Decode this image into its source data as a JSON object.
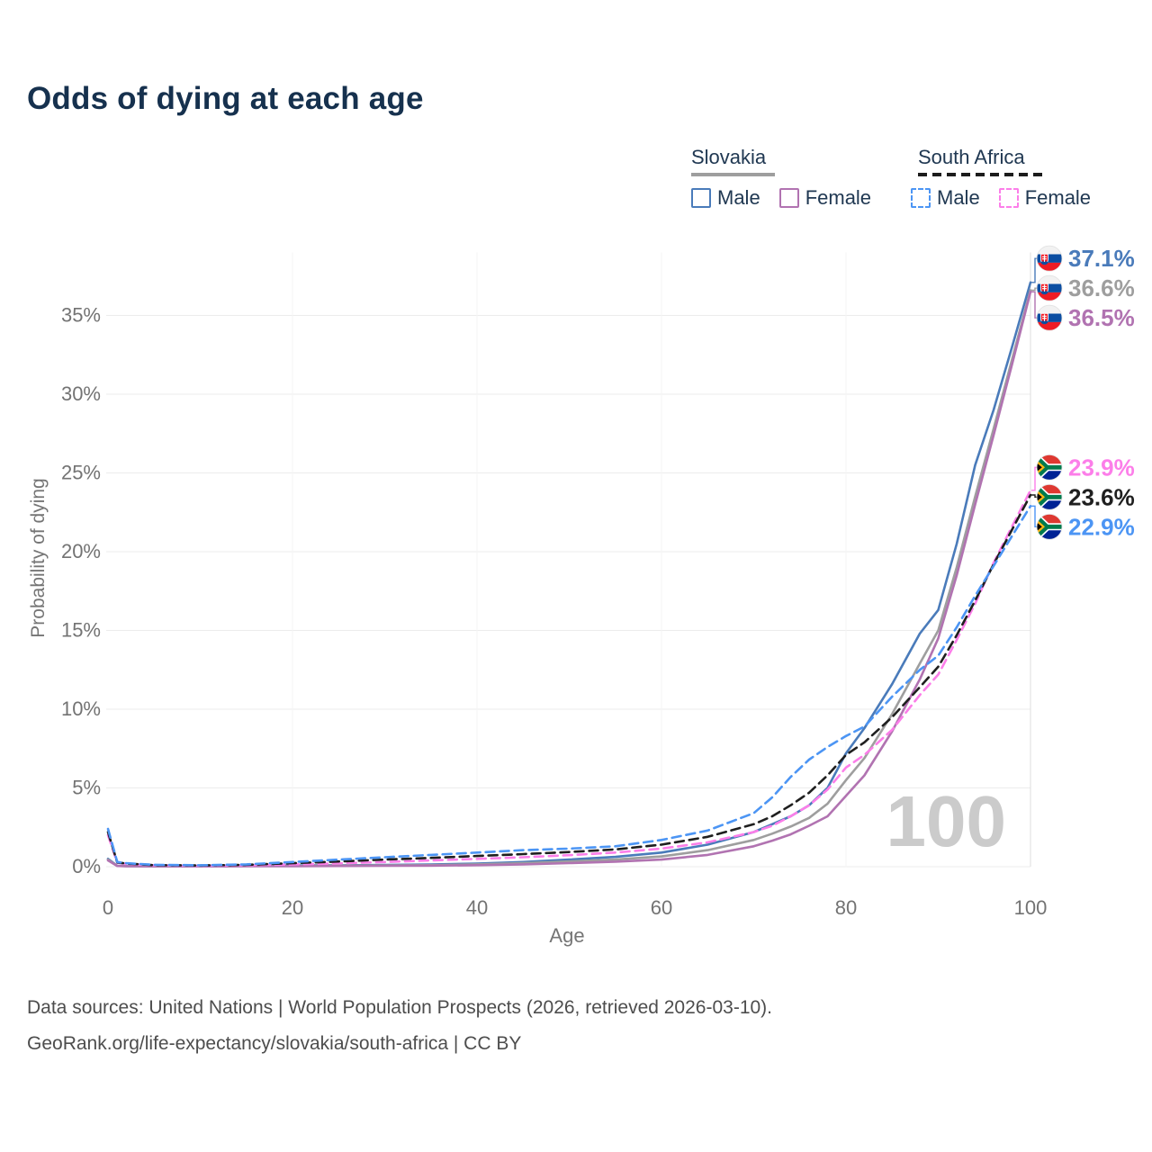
{
  "title": "Odds of dying at each age",
  "legend": {
    "groups": [
      {
        "label": "Slovakia",
        "line_style": "solid",
        "underline_color": "#9e9e9e",
        "items": [
          {
            "label": "Male",
            "color": "#4a7bba"
          },
          {
            "label": "Female",
            "color": "#b173b1"
          }
        ]
      },
      {
        "label": "South Africa",
        "line_style": "dashed",
        "underline_color": "#1c1c1c",
        "items": [
          {
            "label": "Male",
            "color": "#4c95f4"
          },
          {
            "label": "Female",
            "color": "#fc7ee9"
          }
        ]
      }
    ]
  },
  "chart_data": {
    "type": "line",
    "xlabel": "Age",
    "ylabel": "Probability of dying",
    "x_ticks": [
      0,
      20,
      40,
      60,
      80,
      100
    ],
    "y_ticks": [
      "0%",
      "5%",
      "10%",
      "15%",
      "20%",
      "25%",
      "30%",
      "35%"
    ],
    "xlim": [
      0,
      100
    ],
    "ylim": [
      0,
      39
    ],
    "grid": "horizontal-major",
    "legend_position": "top-right",
    "watermark": "100",
    "series": [
      {
        "id": "slovakia-male",
        "country": "Slovakia",
        "sex": "Male",
        "color": "#4a7bba",
        "dashed": false,
        "flag": "sk",
        "end_label": "37.1%",
        "points": [
          [
            0,
            0.5
          ],
          [
            1,
            0.06
          ],
          [
            2,
            0.04
          ],
          [
            5,
            0.03
          ],
          [
            10,
            0.03
          ],
          [
            15,
            0.05
          ],
          [
            20,
            0.08
          ],
          [
            25,
            0.09
          ],
          [
            30,
            0.11
          ],
          [
            35,
            0.14
          ],
          [
            40,
            0.2
          ],
          [
            45,
            0.3
          ],
          [
            50,
            0.45
          ],
          [
            55,
            0.62
          ],
          [
            60,
            0.9
          ],
          [
            65,
            1.4
          ],
          [
            70,
            2.2
          ],
          [
            72,
            2.7
          ],
          [
            74,
            3.2
          ],
          [
            76,
            3.9
          ],
          [
            78,
            5.0
          ],
          [
            80,
            7.2
          ],
          [
            82,
            8.8
          ],
          [
            85,
            11.6
          ],
          [
            88,
            14.8
          ],
          [
            90,
            16.3
          ],
          [
            92,
            20.5
          ],
          [
            94,
            25.5
          ],
          [
            96,
            29.0
          ],
          [
            98,
            33.0
          ],
          [
            100,
            37.1
          ]
        ]
      },
      {
        "id": "slovakia-both-sexes",
        "country": "Slovakia",
        "sex": "Both sexes",
        "color": "#9e9e9e",
        "dashed": false,
        "flag": "sk",
        "end_label": "36.6%",
        "points": [
          [
            0,
            0.45
          ],
          [
            1,
            0.05
          ],
          [
            2,
            0.035
          ],
          [
            5,
            0.02
          ],
          [
            10,
            0.02
          ],
          [
            15,
            0.04
          ],
          [
            20,
            0.06
          ],
          [
            25,
            0.07
          ],
          [
            30,
            0.08
          ],
          [
            35,
            0.1
          ],
          [
            40,
            0.15
          ],
          [
            45,
            0.22
          ],
          [
            50,
            0.33
          ],
          [
            55,
            0.45
          ],
          [
            60,
            0.65
          ],
          [
            65,
            1.05
          ],
          [
            70,
            1.7
          ],
          [
            72,
            2.1
          ],
          [
            74,
            2.55
          ],
          [
            76,
            3.1
          ],
          [
            78,
            4.0
          ],
          [
            80,
            5.5
          ],
          [
            82,
            6.9
          ],
          [
            85,
            9.7
          ],
          [
            88,
            12.9
          ],
          [
            90,
            15.0
          ],
          [
            92,
            19.0
          ],
          [
            94,
            23.5
          ],
          [
            96,
            27.8
          ],
          [
            98,
            32.2
          ],
          [
            100,
            36.6
          ]
        ]
      },
      {
        "id": "slovakia-female",
        "country": "Slovakia",
        "sex": "Female",
        "color": "#b173b1",
        "dashed": false,
        "flag": "sk",
        "end_label": "36.5%",
        "points": [
          [
            0,
            0.4
          ],
          [
            1,
            0.045
          ],
          [
            2,
            0.03
          ],
          [
            5,
            0.02
          ],
          [
            10,
            0.02
          ],
          [
            15,
            0.03
          ],
          [
            20,
            0.035
          ],
          [
            25,
            0.045
          ],
          [
            30,
            0.055
          ],
          [
            35,
            0.07
          ],
          [
            40,
            0.1
          ],
          [
            45,
            0.15
          ],
          [
            50,
            0.23
          ],
          [
            55,
            0.32
          ],
          [
            60,
            0.45
          ],
          [
            65,
            0.75
          ],
          [
            70,
            1.3
          ],
          [
            72,
            1.65
          ],
          [
            74,
            2.05
          ],
          [
            76,
            2.6
          ],
          [
            78,
            3.2
          ],
          [
            80,
            4.5
          ],
          [
            82,
            5.8
          ],
          [
            85,
            8.6
          ],
          [
            88,
            11.9
          ],
          [
            90,
            14.5
          ],
          [
            92,
            18.5
          ],
          [
            94,
            23.0
          ],
          [
            96,
            27.4
          ],
          [
            98,
            31.9
          ],
          [
            100,
            36.5
          ]
        ]
      },
      {
        "id": "south-africa-female",
        "country": "South Africa",
        "sex": "Female",
        "color": "#fc7ee9",
        "dashed": true,
        "flag": "za",
        "end_label": "23.9%",
        "points": [
          [
            0,
            2.0
          ],
          [
            1,
            0.25
          ],
          [
            2,
            0.18
          ],
          [
            5,
            0.09
          ],
          [
            10,
            0.06
          ],
          [
            15,
            0.09
          ],
          [
            20,
            0.14
          ],
          [
            25,
            0.21
          ],
          [
            30,
            0.3
          ],
          [
            35,
            0.4
          ],
          [
            40,
            0.5
          ],
          [
            45,
            0.6
          ],
          [
            50,
            0.73
          ],
          [
            55,
            0.9
          ],
          [
            60,
            1.15
          ],
          [
            65,
            1.55
          ],
          [
            70,
            2.2
          ],
          [
            72,
            2.6
          ],
          [
            74,
            3.2
          ],
          [
            76,
            3.9
          ],
          [
            78,
            4.9
          ],
          [
            80,
            6.3
          ],
          [
            82,
            7.1
          ],
          [
            85,
            8.7
          ],
          [
            88,
            10.9
          ],
          [
            90,
            12.2
          ],
          [
            92,
            14.4
          ],
          [
            94,
            16.7
          ],
          [
            96,
            19.3
          ],
          [
            98,
            21.6
          ],
          [
            100,
            23.9
          ]
        ]
      },
      {
        "id": "south-africa-both-sexes",
        "country": "South Africa",
        "sex": "Both sexes",
        "color": "#1f1f1f",
        "dashed": true,
        "flag": "za",
        "end_label": "23.6%",
        "points": [
          [
            0,
            2.2
          ],
          [
            1,
            0.27
          ],
          [
            2,
            0.2
          ],
          [
            5,
            0.1
          ],
          [
            10,
            0.08
          ],
          [
            15,
            0.12
          ],
          [
            20,
            0.22
          ],
          [
            25,
            0.33
          ],
          [
            30,
            0.45
          ],
          [
            35,
            0.56
          ],
          [
            40,
            0.68
          ],
          [
            45,
            0.8
          ],
          [
            50,
            0.93
          ],
          [
            55,
            1.1
          ],
          [
            60,
            1.4
          ],
          [
            65,
            1.9
          ],
          [
            70,
            2.7
          ],
          [
            72,
            3.2
          ],
          [
            74,
            3.9
          ],
          [
            76,
            4.7
          ],
          [
            78,
            5.8
          ],
          [
            80,
            7.1
          ],
          [
            82,
            7.9
          ],
          [
            85,
            9.5
          ],
          [
            88,
            11.4
          ],
          [
            90,
            12.7
          ],
          [
            92,
            14.7
          ],
          [
            94,
            16.9
          ],
          [
            96,
            19.2
          ],
          [
            98,
            21.4
          ],
          [
            100,
            23.6
          ]
        ]
      },
      {
        "id": "south-africa-male",
        "country": "South Africa",
        "sex": "Male",
        "color": "#4c95f4",
        "dashed": true,
        "flag": "za",
        "end_label": "22.9%",
        "points": [
          [
            0,
            2.4
          ],
          [
            1,
            0.3
          ],
          [
            2,
            0.22
          ],
          [
            5,
            0.12
          ],
          [
            10,
            0.09
          ],
          [
            15,
            0.15
          ],
          [
            20,
            0.3
          ],
          [
            25,
            0.45
          ],
          [
            30,
            0.6
          ],
          [
            35,
            0.75
          ],
          [
            40,
            0.9
          ],
          [
            45,
            1.05
          ],
          [
            50,
            1.15
          ],
          [
            55,
            1.3
          ],
          [
            60,
            1.7
          ],
          [
            65,
            2.3
          ],
          [
            70,
            3.4
          ],
          [
            72,
            4.4
          ],
          [
            74,
            5.7
          ],
          [
            76,
            6.8
          ],
          [
            78,
            7.6
          ],
          [
            80,
            8.3
          ],
          [
            82,
            8.9
          ],
          [
            85,
            10.8
          ],
          [
            88,
            12.5
          ],
          [
            90,
            13.4
          ],
          [
            92,
            15.2
          ],
          [
            94,
            17.2
          ],
          [
            96,
            19.1
          ],
          [
            98,
            21.0
          ],
          [
            100,
            22.9
          ]
        ]
      }
    ]
  },
  "footer": {
    "line1": "Data sources: United Nations | World Population Prospects (2026, retrieved 2026-03-10).",
    "line2": "GeoRank.org/life-expectancy/slovakia/south-africa | CC BY"
  }
}
